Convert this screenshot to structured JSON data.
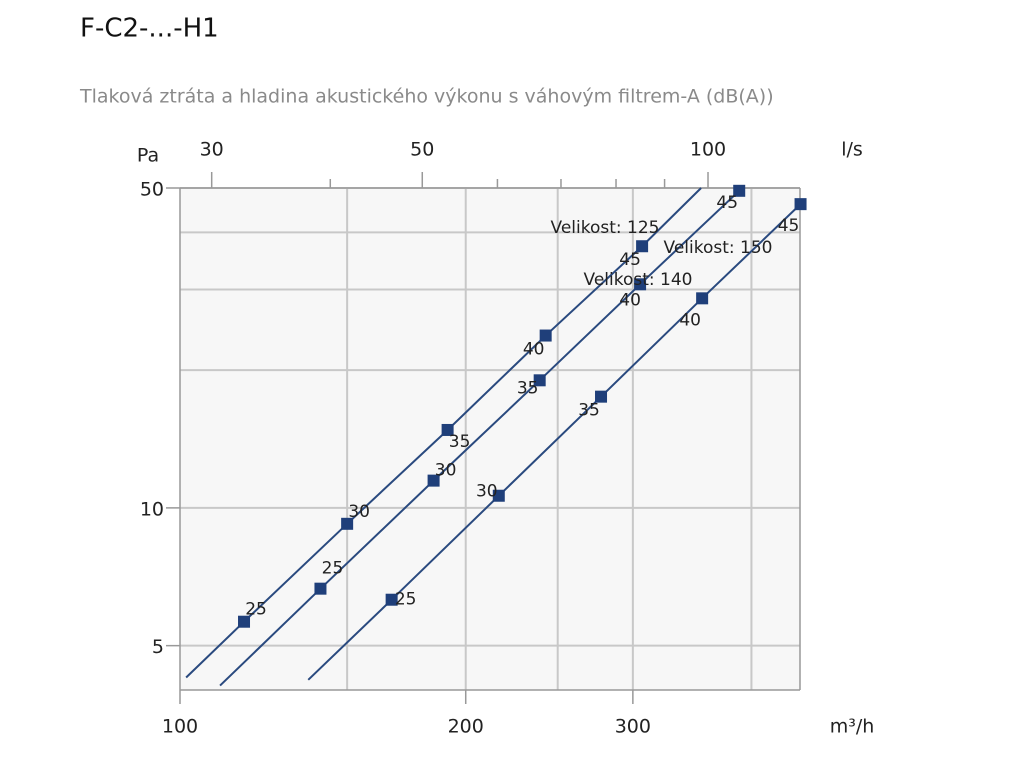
{
  "chart_data": {
    "type": "line",
    "title": "F-C2-...-H1",
    "subtitle": "Tlaková ztráta a hladina akustického výkonu s váhovým filtrem-A (dB(A))",
    "y_label": "Pa",
    "x_label": "m³/h",
    "x2_label": "l/s",
    "log_x": true,
    "log_y": true,
    "grid": true,
    "xlim": [
      100,
      450
    ],
    "xticks": [
      100,
      200,
      300
    ],
    "xgrid": [
      150,
      200,
      250,
      300,
      400
    ],
    "x2lim": [
      27.78,
      125
    ],
    "x2ticks": [
      30,
      50,
      100
    ],
    "x2minor": [
      40,
      60,
      70,
      80,
      90
    ],
    "ylim": [
      4,
      50
    ],
    "yticks": [
      5,
      10,
      50
    ],
    "ygrid": [
      5,
      10,
      20,
      30,
      40,
      50
    ],
    "series": [
      {
        "name": "Velikost: 125",
        "color": "#2a4a7f",
        "marker_color": "#1f3f7a",
        "x": [
          101.5,
          116.8,
          150,
          191.4,
          242.8,
          306.8,
          354
        ],
        "values": [
          4.26,
          5.64,
          9.23,
          14.8,
          23.8,
          37.3,
          50
        ],
        "sound_power_labels": [
          null,
          25,
          30,
          35,
          40,
          45,
          null
        ]
      },
      {
        "name": "Velikost: 140",
        "color": "#2a4a7f",
        "marker_color": "#1f3f7a",
        "x": [
          110.2,
          140.6,
          185,
          239.3,
          305.3,
          388.3
        ],
        "values": [
          4.09,
          6.66,
          11.47,
          19.0,
          30.8,
          49.3
        ],
        "sound_power_labels": [
          null,
          25,
          30,
          35,
          40,
          45
        ]
      },
      {
        "name": "Velikost: 150",
        "color": "#2a4a7f",
        "marker_color": "#1f3f7a",
        "x": [
          136.5,
          167.1,
          216.7,
          277.7,
          354.9,
          450.6
        ],
        "values": [
          4.21,
          6.3,
          10.63,
          17.5,
          28.7,
          46.1
        ],
        "sound_power_labels": [
          null,
          25,
          30,
          35,
          40,
          45
        ]
      }
    ]
  }
}
